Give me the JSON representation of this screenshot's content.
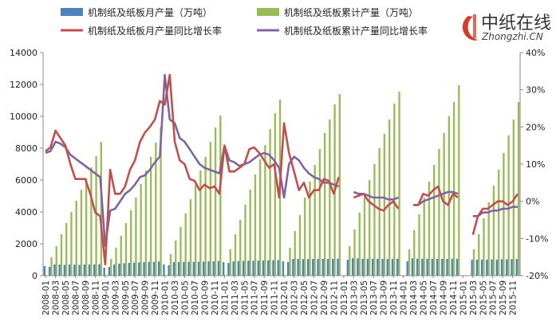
{
  "logo": {
    "cn": "中纸在线",
    "en": "Zhongzhi.CN"
  },
  "chart_data": {
    "type": "bar",
    "legend": [
      {
        "key": "monthly_output",
        "label": "机制纸及纸板月产量（万吨）",
        "kind": "bar",
        "color": "#4F81BD"
      },
      {
        "key": "cumulative_output",
        "label": "机制纸及纸板累计产量（万吨）",
        "kind": "bar",
        "color": "#9BBB59"
      },
      {
        "key": "monthly_yoy",
        "label": "机制纸及纸板月产量同比增长率",
        "kind": "line",
        "color": "#C0504D"
      },
      {
        "key": "cumulative_yoy",
        "label": "机制纸及纸板累计产量同比增长率",
        "kind": "line",
        "color": "#8064A2"
      }
    ],
    "y_left": {
      "min": 0,
      "max": 14000,
      "ticks": [
        0,
        2000,
        4000,
        6000,
        8000,
        10000,
        12000,
        14000
      ]
    },
    "y_right": {
      "min": -20,
      "max": 40,
      "ticks": [
        -20,
        -10,
        0,
        10,
        20,
        30,
        40
      ],
      "tick_labels": [
        "-20%",
        "-10%",
        "0%",
        "10%",
        "20%",
        "30%",
        "40%"
      ]
    },
    "x_tick_labels": [
      "2008-01",
      "2008-03",
      "2008-05",
      "2008-07",
      "2008-09",
      "2008-11",
      "2009-01",
      "2009-03",
      "2009-05",
      "2009-07",
      "2009-09",
      "2009-11",
      "2010-01",
      "2010-03",
      "2010-05",
      "2010-07",
      "2010-09",
      "2010-11",
      "2011-01",
      "2011-03",
      "2011-05",
      "2011-07",
      "2011-09",
      "2011-11",
      "2012-01",
      "2012-03",
      "2012-05",
      "2012-07",
      "2012-09",
      "2012-11",
      "2013-01",
      "2013-03",
      "2013-05",
      "2013-07",
      "2013-09",
      "2013-11",
      "2014-01",
      "2014-03",
      "2014-05",
      "2014-07",
      "2014-09",
      "2014-11",
      "2015-01",
      "2015-03",
      "2015-05",
      "2015-07",
      "2015-09",
      "2015-11"
    ],
    "monthly_output": [
      600,
      550,
      700,
      700,
      680,
      700,
      690,
      680,
      700,
      700,
      710,
      720,
      500,
      550,
      700,
      750,
      780,
      800,
      820,
      830,
      850,
      870,
      870,
      890,
      700,
      650,
      850,
      850,
      860,
      870,
      870,
      880,
      880,
      900,
      900,
      920,
      850,
      800,
      900,
      920,
      930,
      940,
      940,
      950,
      960,
      960,
      970,
      980,
      900,
      850,
      1050,
      1050,
      1040,
      1040,
      1050,
      1050,
      1050,
      1050,
      1060,
      1070,
      null,
      1000,
      1090,
      1080,
      1060,
      1060,
      1060,
      1060,
      1050,
      1050,
      1050,
      1060,
      null,
      900,
      1090,
      1070,
      1060,
      1060,
      1060,
      1050,
      1050,
      1050,
      1060,
      1060,
      null,
      null,
      1000,
      1000,
      1010,
      1010,
      1020,
      1010,
      1030,
      1030,
      1040,
      1050
    ],
    "cumulative_output": [
      null,
      1150,
      1850,
      2600,
      3300,
      4000,
      4700,
      5400,
      6100,
      6800,
      7500,
      8400,
      null,
      1050,
      1750,
      2500,
      3300,
      4100,
      4900,
      5750,
      6600,
      7450,
      8350,
      9300,
      null,
      1350,
      2200,
      3050,
      3900,
      4800,
      5700,
      6600,
      7450,
      8400,
      9300,
      10050,
      null,
      1650,
      2600,
      3500,
      4450,
      5400,
      6350,
      7300,
      8200,
      9200,
      10200,
      11050,
      null,
      1750,
      2800,
      3800,
      4900,
      5900,
      6950,
      7950,
      8950,
      9800,
      10750,
      11400,
      null,
      1850,
      2900,
      3950,
      4950,
      6000,
      7000,
      8000,
      8900,
      9800,
      10800,
      11550,
      null,
      1650,
      2850,
      3850,
      4900,
      5900,
      6950,
      7950,
      8950,
      10000,
      10900,
      11950,
      null,
      null,
      1650,
      2600,
      3600,
      4600,
      5650,
      6650,
      7700,
      8800,
      9800,
      10900
    ],
    "monthly_yoy": [
      13.5,
      14.5,
      19,
      17,
      15,
      10,
      6,
      6,
      6,
      2,
      -3,
      -4,
      -17,
      8.5,
      2,
      2,
      4,
      8.5,
      11,
      16,
      18.5,
      20,
      22,
      27,
      26,
      34,
      16,
      11,
      10,
      6,
      5.5,
      3,
      4.5,
      3.5,
      4,
      2,
      15,
      8,
      8,
      9,
      10,
      14,
      14.5,
      13,
      11,
      9,
      10,
      1,
      21,
      13,
      8,
      3,
      5,
      1,
      3,
      3,
      6,
      5.5,
      2,
      6.5,
      null,
      null,
      1,
      1.5,
      2,
      0,
      -1,
      -2,
      -2.5,
      -1,
      0,
      -2,
      null,
      null,
      -1,
      -1,
      2,
      1.5,
      3,
      4,
      0,
      -1,
      2,
      1,
      null,
      null,
      -9,
      -4,
      -2,
      -2,
      -1,
      0,
      0,
      -1,
      0,
      2
    ],
    "cumulative_yoy": [
      13,
      13.5,
      16,
      15.5,
      14.5,
      12.5,
      11.5,
      10.5,
      9.5,
      8.5,
      7.5,
      6.5,
      -12,
      -2.5,
      -2,
      0,
      2,
      3,
      4.5,
      6.5,
      7,
      8.5,
      10.5,
      12,
      34,
      22,
      21,
      17,
      16,
      14,
      12,
      10,
      9,
      8.5,
      8,
      7.5,
      15,
      11,
      10.5,
      9.5,
      10,
      10.5,
      11.5,
      12.5,
      13,
      12.5,
      11,
      9,
      1,
      10,
      12,
      11,
      9,
      7.5,
      6.5,
      6,
      5,
      5,
      4.5,
      4,
      null,
      null,
      2.5,
      2,
      2,
      1.5,
      1,
      1,
      1,
      0.5,
      0.5,
      1,
      null,
      null,
      -1,
      -1,
      0,
      0.5,
      1,
      1.5,
      2,
      2.5,
      2.5,
      2,
      null,
      null,
      -4,
      -4,
      -3,
      -3,
      -2.5,
      -2.5,
      -2,
      -2,
      -1.5,
      -1.5
    ]
  }
}
